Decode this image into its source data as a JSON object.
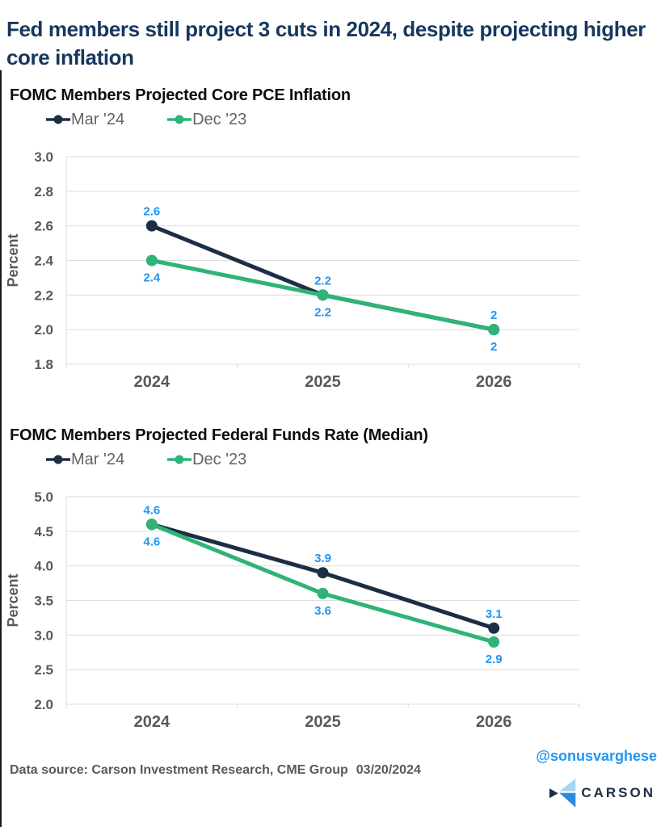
{
  "header": {
    "title": "Fed members still project 3 cuts in 2024, despite projecting higher core inflation"
  },
  "colors": {
    "title-navy": "#17375d",
    "section-title": "#0d0d0d",
    "axis-text": "#595959",
    "category-text": "#595959",
    "legend-text": "#636363",
    "grid": "#dedede",
    "data-label": "#2196f3",
    "source-text": "#595959",
    "handle-blue": "#2196f3",
    "logo-navy": "#1b2e44",
    "logo-light": "#a8d4f2",
    "logo-blue": "#2e8ce0",
    "edge-line": "#1a1a1a"
  },
  "chart_data": [
    {
      "type": "line",
      "title": "FOMC Members Projected Core PCE Inflation",
      "ylabel": "Percent",
      "xlabel": "",
      "categories": [
        "2024",
        "2025",
        "2026"
      ],
      "ylim": [
        1.8,
        3.0
      ],
      "yticks": [
        3.0,
        2.8,
        2.6,
        2.4,
        2.2,
        2.0,
        1.8
      ],
      "ytick_labels": [
        "3.0",
        "2.8",
        "2.6",
        "2.4",
        "2.2",
        "2.0",
        "1.8"
      ],
      "grid": true,
      "legend_position": "top-left",
      "series": [
        {
          "name": "Mar '24",
          "color": "#1b2e44",
          "values": [
            2.6,
            2.2,
            2
          ],
          "point_labels": [
            "2.6",
            "2.2",
            "2"
          ],
          "label_side": "above"
        },
        {
          "name": "Dec '23",
          "color": "#2fb377",
          "values": [
            2.4,
            2.2,
            2
          ],
          "point_labels": [
            "2.4",
            "2.2",
            "2"
          ],
          "label_side": "below"
        }
      ]
    },
    {
      "type": "line",
      "title": "FOMC Members Projected Federal Funds Rate (Median)",
      "ylabel": "Percent",
      "xlabel": "",
      "categories": [
        "2024",
        "2025",
        "2026"
      ],
      "ylim": [
        2.0,
        5.0
      ],
      "yticks": [
        5.0,
        4.5,
        4.0,
        3.5,
        3.0,
        2.5,
        2.0
      ],
      "ytick_labels": [
        "5.0",
        "4.5",
        "4.0",
        "3.5",
        "3.0",
        "2.5",
        "2.0"
      ],
      "grid": true,
      "legend_position": "top-left",
      "series": [
        {
          "name": "Mar '24",
          "color": "#1b2e44",
          "values": [
            4.6,
            3.9,
            3.1
          ],
          "point_labels": [
            "4.6",
            "3.9",
            "3.1"
          ],
          "label_side": "above"
        },
        {
          "name": "Dec '23",
          "color": "#2fb377",
          "values": [
            4.6,
            3.6,
            2.9
          ],
          "point_labels": [
            "4.6",
            "3.6",
            "2.9"
          ],
          "label_side": "below"
        }
      ]
    }
  ],
  "footer": {
    "source": "Data source: Carson Investment Research, CME Group",
    "date": "03/20/2024",
    "handle": "@sonusvarghese",
    "logo_text": "CARSON"
  }
}
